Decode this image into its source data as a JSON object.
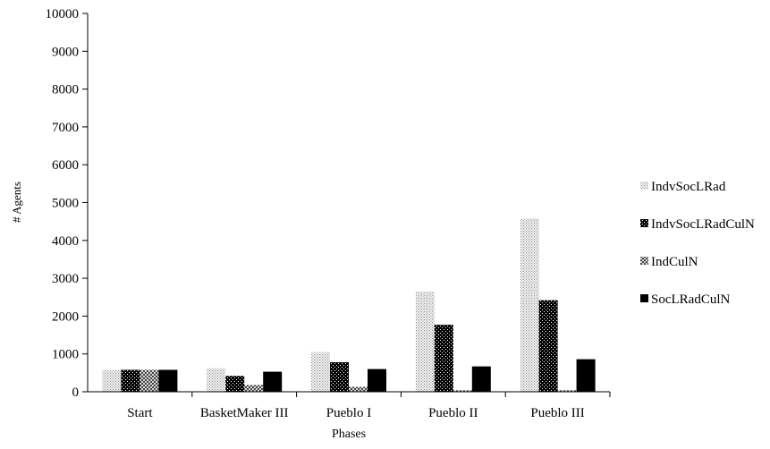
{
  "chart_data": {
    "type": "bar",
    "title": "",
    "xlabel": "Phases",
    "ylabel": "# Agents",
    "ylim": [
      0,
      10000
    ],
    "ytick_step": 1000,
    "y_ticks": [
      "0",
      "1000",
      "2000",
      "3000",
      "4000",
      "5000",
      "6000",
      "7000",
      "8000",
      "9000",
      "10000"
    ],
    "categories": [
      "Start",
      "BasketMaker III",
      "Pueblo I",
      "Pueblo II",
      "Pueblo III"
    ],
    "series": [
      {
        "name": "IndvSocLRad",
        "values": [
          580,
          620,
          1050,
          2650,
          4580
        ]
      },
      {
        "name": "IndvSocLRadCulN",
        "values": [
          580,
          420,
          780,
          1770,
          2420
        ]
      },
      {
        "name": "IndCulN",
        "values": [
          580,
          180,
          130,
          40,
          40
        ]
      },
      {
        "name": "SocLRadCulN",
        "values": [
          580,
          530,
          600,
          670,
          860
        ]
      }
    ],
    "grid": false,
    "legend_position": "right"
  }
}
